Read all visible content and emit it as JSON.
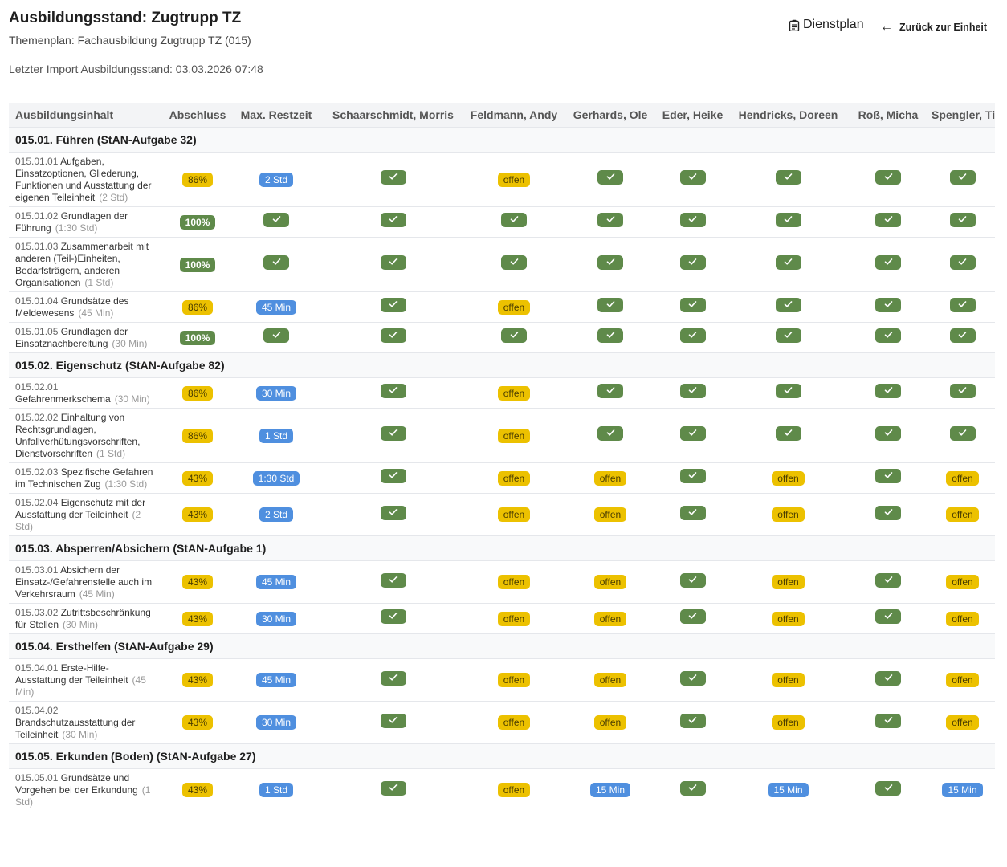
{
  "header": {
    "title": "Ausbildungsstand: Zugtrupp TZ",
    "subtitle": "Themenplan: Fachausbildung Zugtrupp TZ (015)",
    "import_text": "Letzter Import Ausbildungsstand: 03.03.2026 07:48",
    "dienstplan_label": "Dienstplan",
    "dienstplan_icon": "clipboard-icon",
    "back_label": "Zurück zur Einheit",
    "back_icon": "arrow-left-icon"
  },
  "colors": {
    "yellow": "#ecc100",
    "green": "#5f8a4a",
    "blue": "#4f8fdf",
    "header_bg": "#f3f4f6"
  },
  "columns": [
    "Ausbildungsinhalt",
    "Abschluss",
    "Max. Restzeit",
    "Schaarschmidt, Morris",
    "Feldmann, Andy",
    "Gerhards, Ole",
    "Eder, Heike",
    "Hendricks, Doreen",
    "Roß, Micha",
    "Spengler, Till"
  ],
  "groups": [
    {
      "title": "015.01. Führen (StAN-Aufgabe 32)",
      "items": [
        {
          "code": "015.01.01",
          "name": "Aufgaben, Einsatzoptionen, Gliederung, Funktionen und Ausstattung der eigenen Teileinheit",
          "duration": "(2 Std)",
          "abschluss": "86%",
          "restzeit": "2 Std",
          "cells": [
            "check",
            "offen",
            "check",
            "check",
            "check",
            "check",
            "check"
          ]
        },
        {
          "code": "015.01.02",
          "name": "Grundlagen der Führung",
          "duration": "(1:30 Std)",
          "abschluss": "100%",
          "restzeit": "check",
          "cells": [
            "check",
            "check",
            "check",
            "check",
            "check",
            "check",
            "check"
          ]
        },
        {
          "code": "015.01.03",
          "name": "Zusammenarbeit mit anderen (Teil-)Einheiten, Bedarfsträgern, anderen Organisationen",
          "duration": "(1 Std)",
          "abschluss": "100%",
          "restzeit": "check",
          "cells": [
            "check",
            "check",
            "check",
            "check",
            "check",
            "check",
            "check"
          ]
        },
        {
          "code": "015.01.04",
          "name": "Grundsätze des Meldewesens",
          "duration": "(45 Min)",
          "abschluss": "86%",
          "restzeit": "45 Min",
          "cells": [
            "check",
            "offen",
            "check",
            "check",
            "check",
            "check",
            "check"
          ]
        },
        {
          "code": "015.01.05",
          "name": "Grundlagen der Einsatznachbereitung",
          "duration": "(30 Min)",
          "abschluss": "100%",
          "restzeit": "check",
          "cells": [
            "check",
            "check",
            "check",
            "check",
            "check",
            "check",
            "check"
          ]
        }
      ]
    },
    {
      "title": "015.02. Eigenschutz (StAN-Aufgabe 82)",
      "items": [
        {
          "code": "015.02.01",
          "name": "Gefahrenmerkschema",
          "duration": "(30 Min)",
          "abschluss": "86%",
          "restzeit": "30 Min",
          "cells": [
            "check",
            "offen",
            "check",
            "check",
            "check",
            "check",
            "check"
          ]
        },
        {
          "code": "015.02.02",
          "name": "Einhaltung von Rechtsgrundlagen, Unfallverhütungsvorschriften, Dienstvorschriften",
          "duration": "(1 Std)",
          "abschluss": "86%",
          "restzeit": "1 Std",
          "cells": [
            "check",
            "offen",
            "check",
            "check",
            "check",
            "check",
            "check"
          ]
        },
        {
          "code": "015.02.03",
          "name": "Spezifische Gefahren im Technischen Zug",
          "duration": "(1:30 Std)",
          "abschluss": "43%",
          "restzeit": "1:30 Std",
          "cells": [
            "check",
            "offen",
            "offen",
            "check",
            "offen",
            "check",
            "offen"
          ]
        },
        {
          "code": "015.02.04",
          "name": "Eigenschutz mit der Ausstattung der Teileinheit",
          "duration": "(2 Std)",
          "abschluss": "43%",
          "restzeit": "2 Std",
          "cells": [
            "check",
            "offen",
            "offen",
            "check",
            "offen",
            "check",
            "offen"
          ]
        }
      ]
    },
    {
      "title": "015.03. Absperren/Absichern (StAN-Aufgabe 1)",
      "items": [
        {
          "code": "015.03.01",
          "name": "Absichern der Einsatz-/Gefahrenstelle auch im Verkehrsraum",
          "duration": "(45 Min)",
          "abschluss": "43%",
          "restzeit": "45 Min",
          "cells": [
            "check",
            "offen",
            "offen",
            "check",
            "offen",
            "check",
            "offen"
          ]
        },
        {
          "code": "015.03.02",
          "name": "Zutrittsbeschränkung für Stellen",
          "duration": "(30 Min)",
          "abschluss": "43%",
          "restzeit": "30 Min",
          "cells": [
            "check",
            "offen",
            "offen",
            "check",
            "offen",
            "check",
            "offen"
          ]
        }
      ]
    },
    {
      "title": "015.04. Ersthelfen (StAN-Aufgabe 29)",
      "items": [
        {
          "code": "015.04.01",
          "name": "Erste-Hilfe-Ausstattung der Teileinheit",
          "duration": "(45 Min)",
          "abschluss": "43%",
          "restzeit": "45 Min",
          "cells": [
            "check",
            "offen",
            "offen",
            "check",
            "offen",
            "check",
            "offen"
          ]
        },
        {
          "code": "015.04.02",
          "name": "Brandschutzausstattung der Teileinheit",
          "duration": "(30 Min)",
          "abschluss": "43%",
          "restzeit": "30 Min",
          "cells": [
            "check",
            "offen",
            "offen",
            "check",
            "offen",
            "check",
            "offen"
          ]
        }
      ]
    },
    {
      "title": "015.05. Erkunden (Boden) (StAN-Aufgabe 27)",
      "items": [
        {
          "code": "015.05.01",
          "name": "Grundsätze und Vorgehen bei der Erkundung",
          "duration": "(1 Std)",
          "abschluss": "43%",
          "restzeit": "1 Std",
          "cells": [
            "check",
            "offen",
            "15 Min",
            "check",
            "15 Min",
            "check",
            "15 Min"
          ]
        }
      ]
    }
  ]
}
